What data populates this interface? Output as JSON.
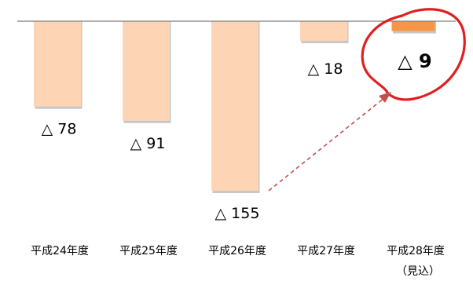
{
  "chart_data": {
    "type": "bar",
    "categories": [
      "平成24年度",
      "平成25年度",
      "平成26年度",
      "平成27年度",
      "平成28年度"
    ],
    "category_notes": [
      "",
      "",
      "",
      "",
      "（見込）"
    ],
    "values": [
      -78,
      -91,
      -155,
      -18,
      -9
    ],
    "data_labels": [
      "△ 78",
      "△ 91",
      "△ 155",
      "△ 18",
      "△ 9"
    ],
    "highlight_index": 4,
    "ylim": [
      -160,
      0
    ],
    "title": "",
    "xlabel": "",
    "ylabel": "",
    "grid": false,
    "colors": {
      "bar": "#fdd5b5",
      "bar_shadow": "#c8c8c8",
      "highlight_bar": "#f79646",
      "axis_line": "#7f7f7f",
      "circle": "#e02020",
      "arrow": "#c0504d"
    }
  }
}
